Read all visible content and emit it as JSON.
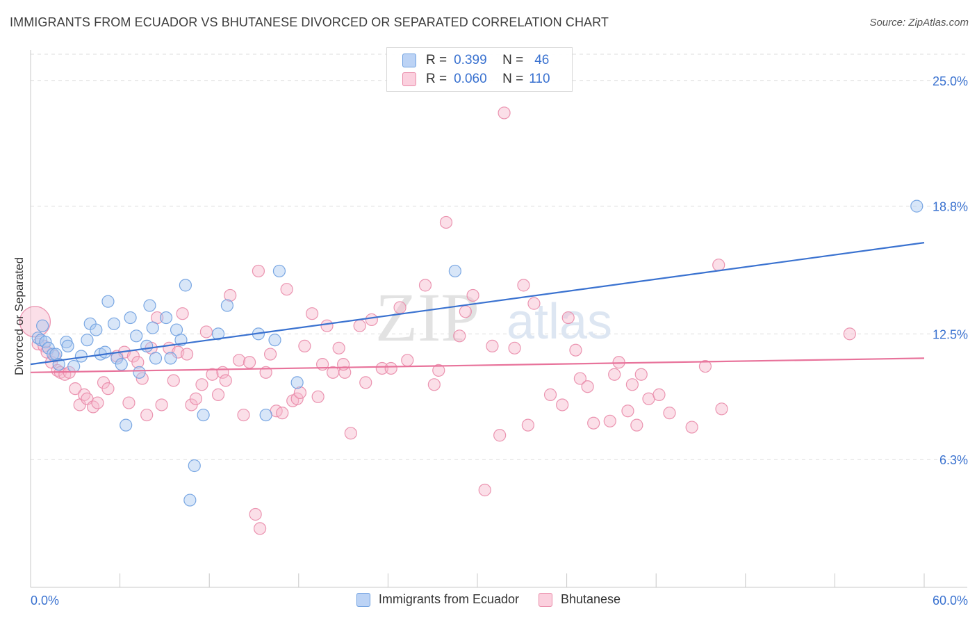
{
  "title": "IMMIGRANTS FROM ECUADOR VS BHUTANESE DIVORCED OR SEPARATED CORRELATION CHART",
  "source": "Source: ZipAtlas.com",
  "watermark": {
    "zip": "ZIP",
    "atlas": "atlas"
  },
  "legend_top": {
    "rows": [
      {
        "r_label": "R =",
        "r_value": "0.399",
        "n_label": "N =",
        "n_value": "46"
      },
      {
        "r_label": "R =",
        "r_value": "0.060",
        "n_label": "N =",
        "n_value": "110"
      }
    ]
  },
  "colors": {
    "blue_fill": "#a9c7f0",
    "blue_stroke": "#6d9fe0",
    "blue_line": "#3a72d0",
    "pink_fill": "#f7b9cc",
    "pink_stroke": "#e98aa8",
    "pink_line": "#e8739b",
    "axis_text": "#3a72d0",
    "grid": "#dddddd"
  },
  "chart_data": {
    "type": "scatter",
    "title": "IMMIGRANTS FROM ECUADOR VS BHUTANESE DIVORCED OR SEPARATED CORRELATION CHART",
    "xlabel": "",
    "ylabel": "Divorced or Separated",
    "xlim": [
      0,
      60
    ],
    "ylim": [
      0,
      26.5
    ],
    "x_tick_labels": [
      "0.0%",
      "60.0%"
    ],
    "y_ticks": [
      6.3,
      12.5,
      18.8,
      25.0
    ],
    "y_tick_labels": [
      "6.3%",
      "12.5%",
      "18.8%",
      "25.0%"
    ],
    "grid": true,
    "legend_position": "bottom",
    "series": [
      {
        "name": "Immigrants from Ecuador",
        "color": "#6d9fe0",
        "trend": [
          [
            0,
            11.0
          ],
          [
            60,
            17.0
          ]
        ],
        "points": [
          [
            0.5,
            12.3
          ],
          [
            0.7,
            12.2
          ],
          [
            0.8,
            12.9
          ],
          [
            1.0,
            12.1
          ],
          [
            1.2,
            11.8
          ],
          [
            1.5,
            11.5
          ],
          [
            1.7,
            11.5
          ],
          [
            1.9,
            11.0
          ],
          [
            2.4,
            12.1
          ],
          [
            2.5,
            11.9
          ],
          [
            2.9,
            10.9
          ],
          [
            3.4,
            11.4
          ],
          [
            3.8,
            12.2
          ],
          [
            4.0,
            13.0
          ],
          [
            4.4,
            12.7
          ],
          [
            4.7,
            11.5
          ],
          [
            5.0,
            11.6
          ],
          [
            5.2,
            14.1
          ],
          [
            5.6,
            13.0
          ],
          [
            5.8,
            11.3
          ],
          [
            6.1,
            11.0
          ],
          [
            6.4,
            8.0
          ],
          [
            6.7,
            13.3
          ],
          [
            7.1,
            12.4
          ],
          [
            7.3,
            10.6
          ],
          [
            7.8,
            11.9
          ],
          [
            8.0,
            13.9
          ],
          [
            8.2,
            12.8
          ],
          [
            8.4,
            11.3
          ],
          [
            9.1,
            13.3
          ],
          [
            9.4,
            11.3
          ],
          [
            9.8,
            12.7
          ],
          [
            10.1,
            12.2
          ],
          [
            10.4,
            14.9
          ],
          [
            10.7,
            4.3
          ],
          [
            11.0,
            6.0
          ],
          [
            11.6,
            8.5
          ],
          [
            12.6,
            12.5
          ],
          [
            13.2,
            13.9
          ],
          [
            15.3,
            12.5
          ],
          [
            15.8,
            8.5
          ],
          [
            16.4,
            12.2
          ],
          [
            16.7,
            15.6
          ],
          [
            17.9,
            10.1
          ],
          [
            28.5,
            15.6
          ],
          [
            59.5,
            18.8
          ]
        ]
      },
      {
        "name": "Bhutanese",
        "color": "#e98aa8",
        "trend": [
          [
            0,
            10.6
          ],
          [
            60,
            11.3
          ]
        ],
        "points": [
          [
            0.3,
            13.1
          ],
          [
            0.5,
            12.0
          ],
          [
            0.9,
            11.9
          ],
          [
            1.1,
            11.6
          ],
          [
            1.4,
            11.1
          ],
          [
            1.6,
            11.4
          ],
          [
            1.8,
            10.7
          ],
          [
            2.0,
            10.6
          ],
          [
            2.3,
            10.5
          ],
          [
            2.6,
            10.6
          ],
          [
            3.0,
            9.8
          ],
          [
            3.3,
            9.0
          ],
          [
            3.6,
            9.5
          ],
          [
            3.8,
            9.3
          ],
          [
            4.2,
            8.9
          ],
          [
            4.5,
            9.1
          ],
          [
            4.9,
            10.1
          ],
          [
            5.2,
            9.8
          ],
          [
            5.8,
            11.4
          ],
          [
            6.3,
            11.6
          ],
          [
            6.6,
            9.1
          ],
          [
            6.9,
            11.4
          ],
          [
            7.2,
            11.1
          ],
          [
            7.5,
            10.3
          ],
          [
            7.8,
            8.5
          ],
          [
            8.1,
            11.8
          ],
          [
            8.5,
            13.3
          ],
          [
            8.8,
            9.0
          ],
          [
            9.3,
            11.8
          ],
          [
            9.6,
            10.2
          ],
          [
            9.9,
            11.6
          ],
          [
            10.2,
            13.5
          ],
          [
            10.5,
            11.5
          ],
          [
            10.8,
            9.0
          ],
          [
            11.1,
            9.3
          ],
          [
            11.5,
            10.0
          ],
          [
            11.8,
            12.6
          ],
          [
            12.2,
            10.5
          ],
          [
            12.6,
            9.5
          ],
          [
            12.9,
            10.6
          ],
          [
            13.1,
            10.2
          ],
          [
            13.4,
            14.4
          ],
          [
            14.0,
            11.2
          ],
          [
            14.3,
            8.5
          ],
          [
            14.7,
            11.1
          ],
          [
            15.3,
            15.6
          ],
          [
            15.8,
            10.6
          ],
          [
            16.1,
            11.5
          ],
          [
            16.5,
            8.7
          ],
          [
            16.9,
            8.6
          ],
          [
            17.2,
            14.7
          ],
          [
            17.6,
            9.2
          ],
          [
            17.9,
            9.3
          ],
          [
            18.1,
            9.6
          ],
          [
            18.4,
            11.9
          ],
          [
            18.9,
            13.5
          ],
          [
            19.3,
            9.4
          ],
          [
            19.6,
            11.0
          ],
          [
            19.9,
            12.9
          ],
          [
            20.3,
            10.6
          ],
          [
            20.7,
            11.8
          ],
          [
            21.1,
            10.6
          ],
          [
            21.5,
            7.6
          ],
          [
            22.1,
            12.9
          ],
          [
            22.5,
            10.1
          ],
          [
            22.9,
            13.2
          ],
          [
            23.6,
            10.8
          ],
          [
            24.2,
            10.8
          ],
          [
            24.8,
            13.8
          ],
          [
            25.3,
            11.2
          ],
          [
            26.5,
            14.9
          ],
          [
            27.1,
            10.0
          ],
          [
            27.4,
            10.7
          ],
          [
            27.9,
            18.0
          ],
          [
            28.8,
            12.4
          ],
          [
            29.2,
            13.6
          ],
          [
            29.7,
            14.4
          ],
          [
            30.5,
            4.8
          ],
          [
            31.0,
            11.9
          ],
          [
            31.5,
            7.5
          ],
          [
            31.8,
            23.4
          ],
          [
            32.5,
            11.8
          ],
          [
            33.1,
            14.9
          ],
          [
            33.4,
            8.0
          ],
          [
            33.8,
            14.0
          ],
          [
            34.9,
            9.5
          ],
          [
            35.7,
            9.0
          ],
          [
            36.1,
            13.3
          ],
          [
            36.6,
            11.7
          ],
          [
            36.9,
            10.3
          ],
          [
            37.4,
            9.9
          ],
          [
            37.8,
            8.1
          ],
          [
            38.9,
            8.2
          ],
          [
            39.2,
            10.5
          ],
          [
            39.5,
            11.1
          ],
          [
            40.1,
            8.7
          ],
          [
            40.4,
            10.0
          ],
          [
            40.7,
            8.0
          ],
          [
            41.0,
            10.5
          ],
          [
            41.5,
            9.3
          ],
          [
            42.2,
            9.5
          ],
          [
            42.9,
            8.6
          ],
          [
            44.4,
            7.9
          ],
          [
            45.3,
            10.9
          ],
          [
            46.2,
            15.9
          ],
          [
            46.4,
            8.8
          ],
          [
            55.0,
            12.5
          ],
          [
            21.0,
            11.0
          ],
          [
            15.1,
            3.6
          ],
          [
            15.4,
            2.9
          ]
        ]
      }
    ]
  },
  "bottom_legend": [
    {
      "label": "Immigrants from Ecuador"
    },
    {
      "label": "Bhutanese"
    }
  ]
}
